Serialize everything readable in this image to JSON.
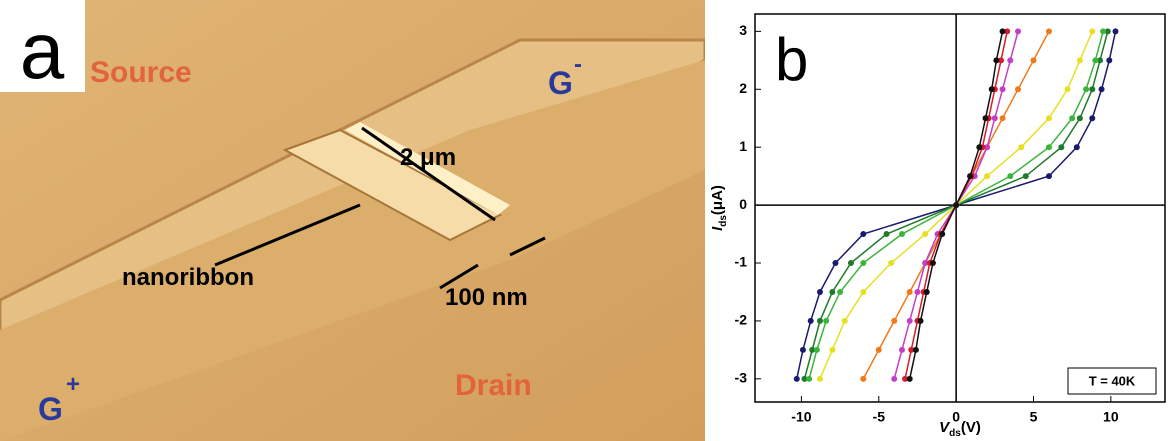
{
  "panel_a": {
    "letter": "a",
    "labels": {
      "source": "Source",
      "gate_minus": "G",
      "gate_minus_sign": "-",
      "length": "2 μm",
      "ribbon": "nanoribbon",
      "width": "100 nm",
      "gate_plus": "G",
      "gate_plus_sign": "+",
      "drain": "Drain"
    }
  },
  "chart_data": {
    "type": "line",
    "panel_letter": "b",
    "xlabel": {
      "symbol": "V",
      "subscript": "ds",
      "unit": "(V)"
    },
    "ylabel": {
      "symbol": "I",
      "subscript": "ds",
      "unit": "(μA)"
    },
    "annotation": "T = 40K",
    "xlim": [
      -13,
      13.5
    ],
    "ylim": [
      -3.4,
      3.3
    ],
    "xticks": [
      -10,
      -5,
      0,
      5,
      10
    ],
    "yticks": [
      -3,
      -2,
      -1,
      0,
      1,
      2,
      3
    ],
    "zero_lines": true,
    "series": [
      {
        "color": "#1a1a6e",
        "x": [
          -10.3,
          -9.9,
          -9.4,
          -8.8,
          -7.8,
          -6,
          0,
          6,
          7.8,
          8.8,
          9.4,
          9.9,
          10.3
        ],
        "values": [
          -3,
          -2.5,
          -2,
          -1.5,
          -1,
          -0.5,
          0,
          0.5,
          1,
          1.5,
          2,
          2.5,
          3
        ]
      },
      {
        "color": "#1f7a2a",
        "x": [
          -9.8,
          -9.3,
          -8.8,
          -8,
          -6.8,
          -4.5,
          0,
          4.5,
          6.8,
          8,
          8.8,
          9.3,
          9.8
        ],
        "values": [
          -3,
          -2.5,
          -2,
          -1.5,
          -1,
          -0.5,
          0,
          0.5,
          1,
          1.5,
          2,
          2.5,
          3
        ]
      },
      {
        "color": "#3cb43c",
        "x": [
          -9.5,
          -9,
          -8.4,
          -7.5,
          -6,
          -3.5,
          0,
          3.5,
          6,
          7.5,
          8.4,
          9,
          9.5
        ],
        "values": [
          -3,
          -2.5,
          -2,
          -1.5,
          -1,
          -0.5,
          0,
          0.5,
          1,
          1.5,
          2,
          2.5,
          3
        ]
      },
      {
        "color": "#e6e020",
        "x": [
          -8.8,
          -8,
          -7.2,
          -6,
          -4.2,
          -2,
          0,
          2,
          4.2,
          6,
          7.2,
          8,
          8.8
        ],
        "values": [
          -3,
          -2.5,
          -2,
          -1.5,
          -1,
          -0.5,
          0,
          0.5,
          1,
          1.5,
          2,
          2.5,
          3
        ]
      },
      {
        "color": "#f07a1a",
        "x": [
          -6,
          -5,
          -4,
          -3,
          -2,
          -1,
          0,
          1,
          2,
          3,
          4,
          5,
          6
        ],
        "values": [
          -3,
          -2.5,
          -2,
          -1.5,
          -1,
          -0.5,
          0,
          0.5,
          1,
          1.5,
          2,
          2.5,
          3
        ]
      },
      {
        "color": "#c040c8",
        "x": [
          -4,
          -3.5,
          -3,
          -2.5,
          -2,
          -1.2,
          0,
          1.2,
          2,
          2.5,
          3,
          3.5,
          4
        ],
        "values": [
          -3,
          -2.5,
          -2,
          -1.5,
          -1,
          -0.5,
          0,
          0.5,
          1,
          1.5,
          2,
          2.5,
          3
        ]
      },
      {
        "color": "#d81a2a",
        "x": [
          -3.3,
          -2.9,
          -2.5,
          -2.1,
          -1.7,
          -1,
          0,
          1,
          1.7,
          2.1,
          2.5,
          2.9,
          3.3
        ],
        "values": [
          -3,
          -2.5,
          -2,
          -1.5,
          -1,
          -0.5,
          0,
          0.5,
          1,
          1.5,
          2,
          2.5,
          3
        ]
      },
      {
        "color": "#111111",
        "x": [
          -3,
          -2.6,
          -2.3,
          -1.9,
          -1.5,
          -0.9,
          0,
          0.9,
          1.5,
          1.9,
          2.3,
          2.6,
          3
        ],
        "values": [
          -3,
          -2.5,
          -2,
          -1.5,
          -1,
          -0.5,
          0,
          0.5,
          1,
          1.5,
          2,
          2.5,
          3
        ]
      }
    ]
  }
}
